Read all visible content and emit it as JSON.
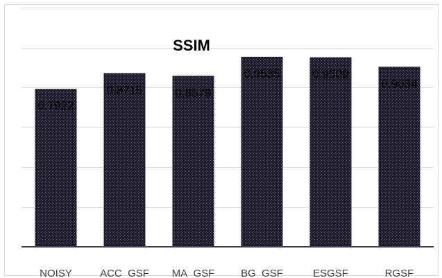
{
  "chart_data": {
    "type": "bar",
    "title": "SSIM",
    "xlabel": "",
    "ylabel": "",
    "categories": [
      "NOISY",
      "ACC_GSF",
      "MA_GSF",
      "BG_GSF",
      "ESGSF",
      "RGSF"
    ],
    "values": [
      0.7922,
      0.8715,
      0.8579,
      0.9535,
      0.9509,
      0.9034
    ],
    "data_labels": [
      "0.7922",
      "0.8715",
      "0.8579",
      "0.9535",
      "0.9509",
      "0.9034"
    ],
    "ylim": [
      0,
      1.2
    ],
    "gridlines": true,
    "legend": "none",
    "bar_color": "#1c1a28",
    "bar_pattern_color": "#6e6a8a",
    "gridline_color": "#d9d9d9",
    "axis_color": "#404040"
  }
}
